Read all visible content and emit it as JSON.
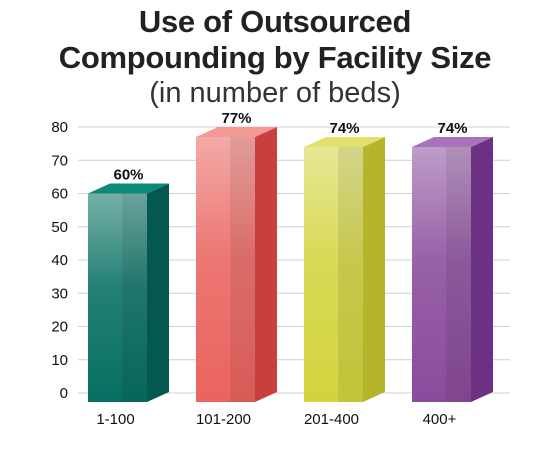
{
  "header": {
    "title_line1": "Use of Outsourced",
    "title_line2": "Compounding by Facility Size",
    "subtitle": "(in number of beds)"
  },
  "chart_data": {
    "type": "bar",
    "title": "Use of Outsourced Compounding by Facility Size",
    "subtitle": "(in number of beds)",
    "categories": [
      "1-100",
      "101-200",
      "201-400",
      "400+"
    ],
    "values": [
      60,
      77,
      74,
      74
    ],
    "data_labels": [
      "60%",
      "77%",
      "74%",
      "74%"
    ],
    "ylim": [
      0,
      80
    ],
    "yticks": [
      0,
      10,
      20,
      30,
      40,
      50,
      60,
      70,
      80
    ],
    "xlabel": "",
    "ylabel": "",
    "grid": true,
    "legend": "none",
    "colors": {
      "front": [
        "#066f61",
        "#ea6460",
        "#d2d43e",
        "#8a4b9c"
      ],
      "side": [
        "#04584d",
        "#c8403d",
        "#b4b52a",
        "#6c3183"
      ],
      "top": [
        "#0a8a78",
        "#f39a95",
        "#e1e26d",
        "#a873b8"
      ]
    }
  }
}
